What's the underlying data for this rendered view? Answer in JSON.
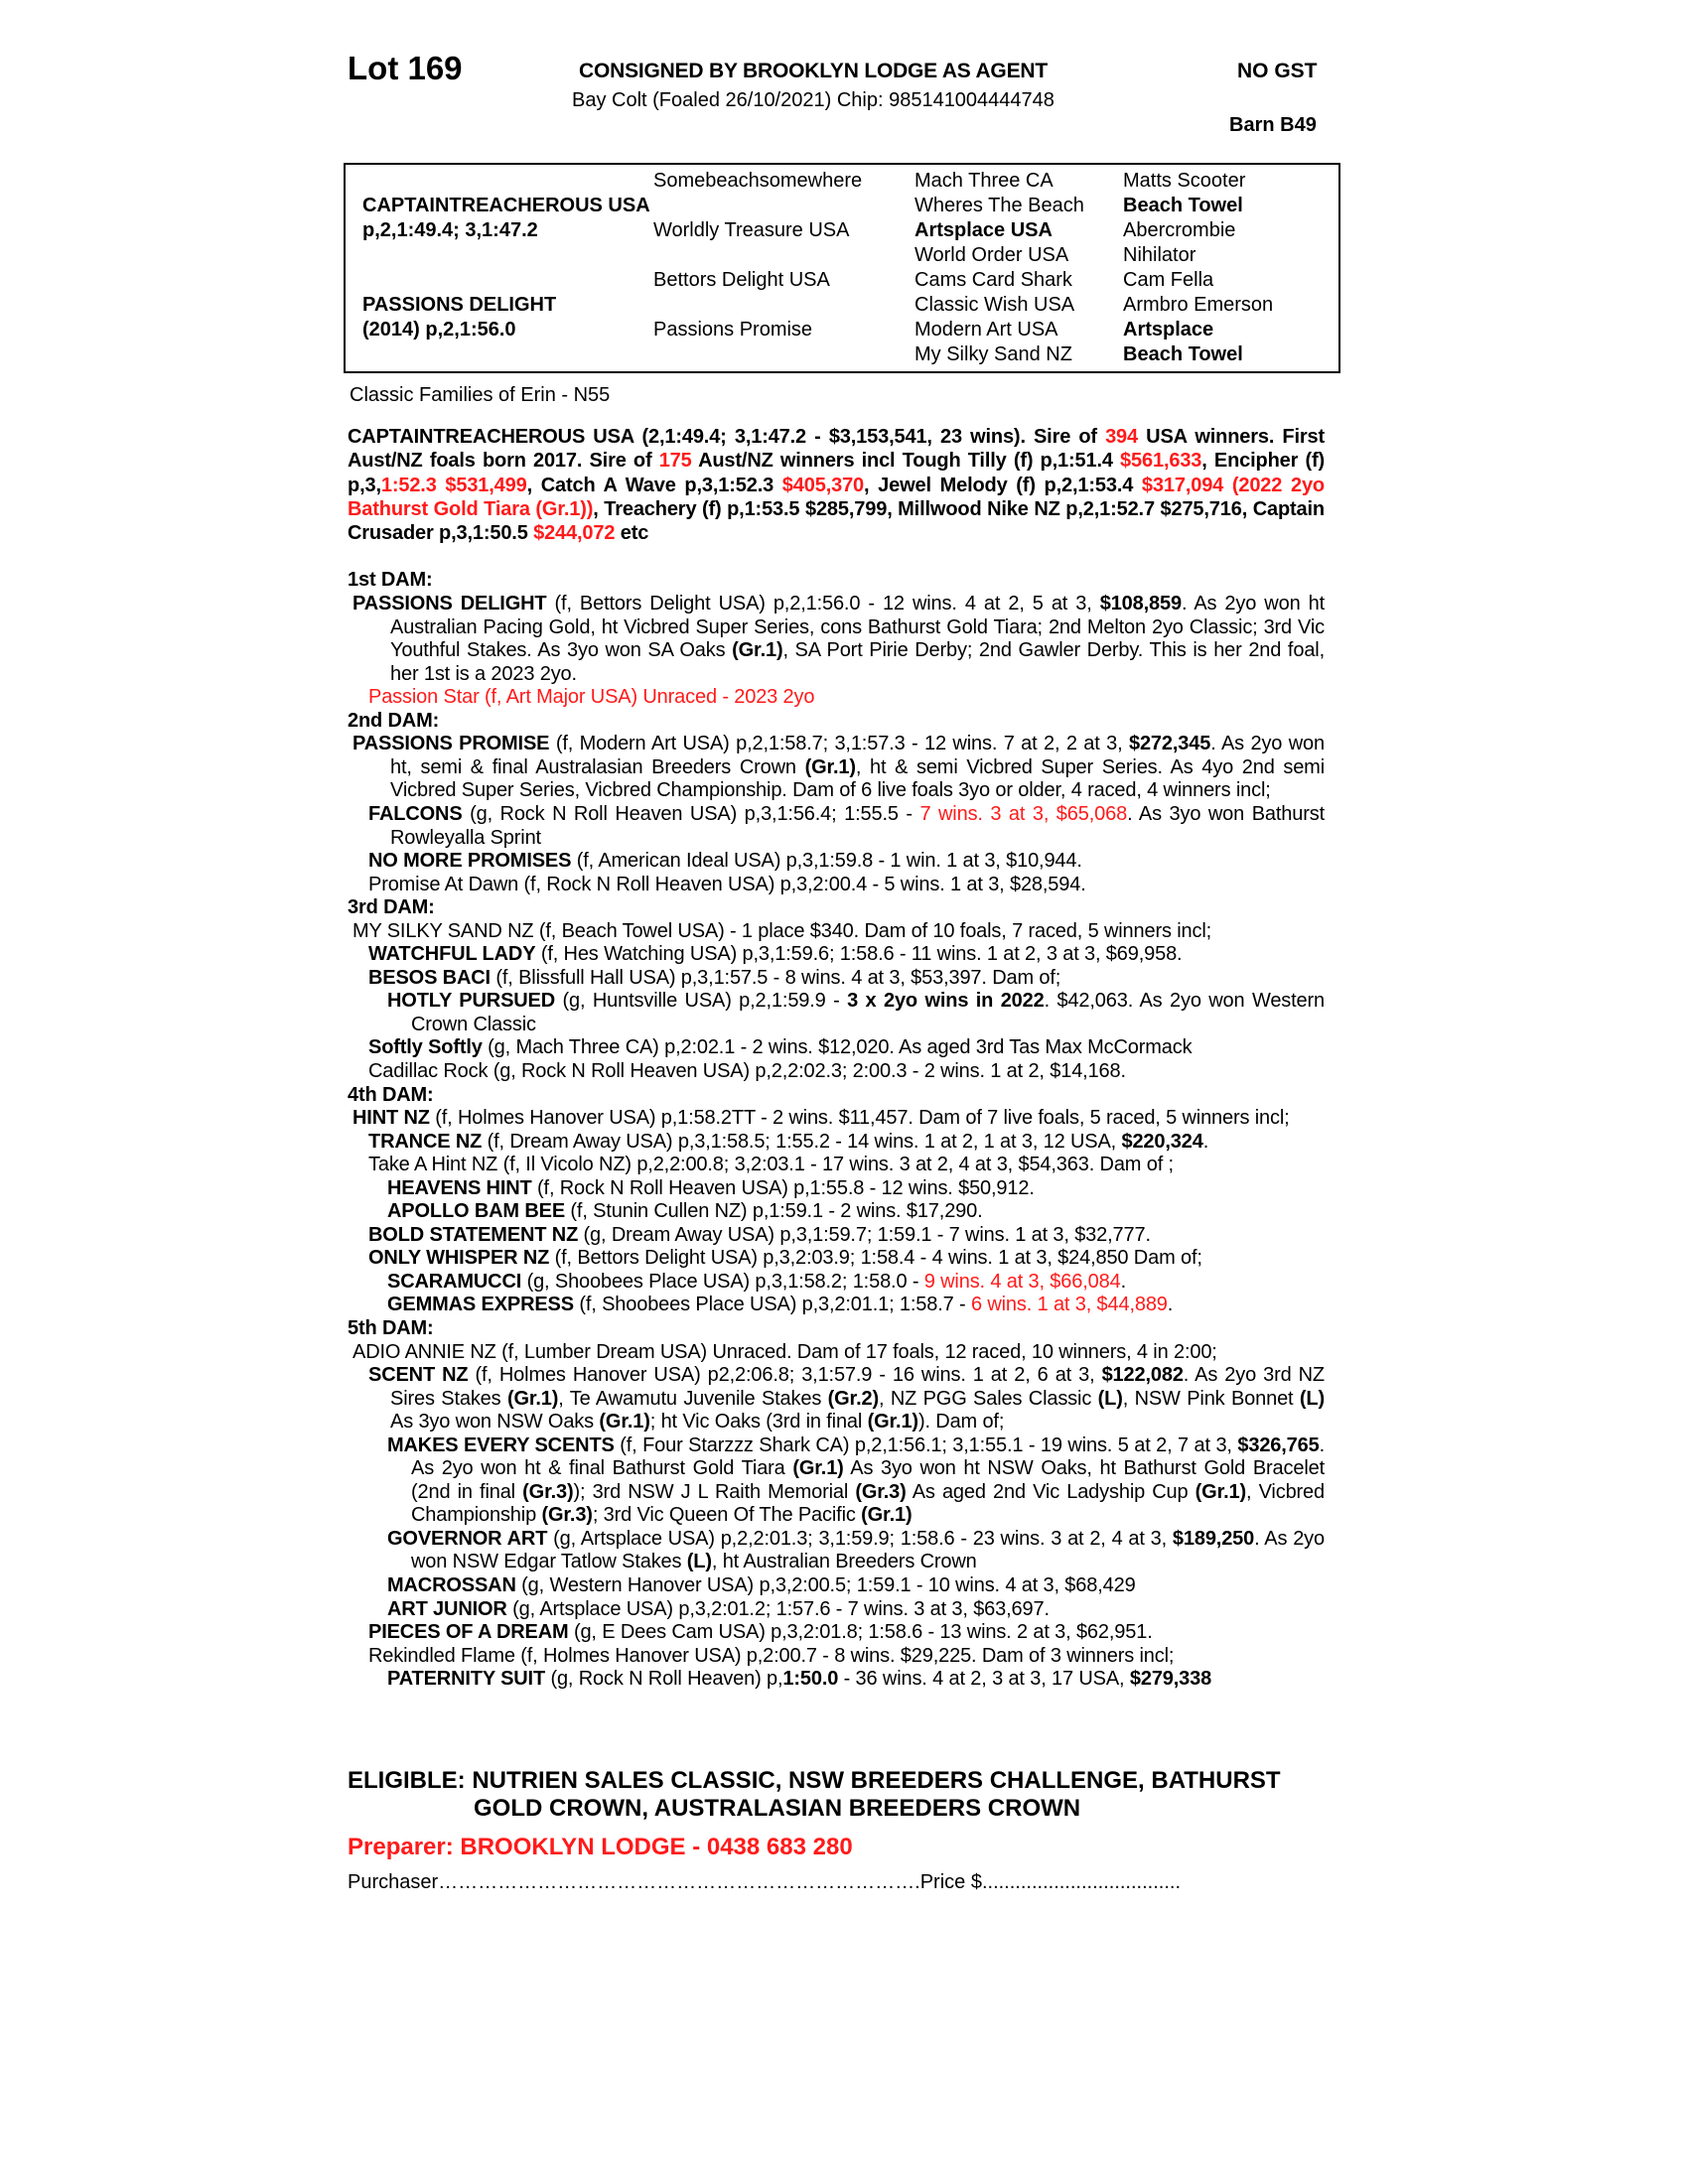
{
  "header": {
    "lot": "Lot 169",
    "consigned": "CONSIGNED BY BROOKLYN LODGE AS AGENT",
    "gst": "NO GST",
    "description": "Bay Colt (Foaled 26/10/2021) Chip: 985141004444748",
    "barn": "Barn B49"
  },
  "pedigree": {
    "sire": "CAPTAINTREACHEROUS USA",
    "sire_record": "p,2,1:49.4; 3,1:47.2",
    "dam": "PASSIONS DELIGHT",
    "dam_record": "(2014) p,2,1:56.0",
    "gen2": [
      "Somebeachsomewhere",
      "Worldly Treasure USA",
      "Bettors Delight USA",
      "Passions Promise"
    ],
    "gen3": [
      {
        "t": "Mach Three CA",
        "s": ""
      },
      {
        "t": "Wheres The Beach",
        "s": ""
      },
      {
        "t": "Artsplace USA",
        "s": "b"
      },
      {
        "t": "World Order USA",
        "s": ""
      },
      {
        "t": "Cams Card Shark",
        "s": ""
      },
      {
        "t": "Classic Wish USA",
        "s": ""
      },
      {
        "t": "Modern Art USA",
        "s": ""
      },
      {
        "t": "My Silky Sand NZ",
        "s": ""
      }
    ],
    "gen4": [
      {
        "t": "Matts Scooter",
        "s": ""
      },
      {
        "t": "Beach Towel",
        "s": "b"
      },
      {
        "t": "Abercrombie",
        "s": ""
      },
      {
        "t": "Nihilator",
        "s": ""
      },
      {
        "t": "Cam Fella",
        "s": ""
      },
      {
        "t": "Armbro Emerson",
        "s": ""
      },
      {
        "t": "Artsplace",
        "s": "b"
      },
      {
        "t": "Beach Towel",
        "s": "b"
      }
    ]
  },
  "family": "Classic Families of Erin - N55",
  "colors": {
    "highlight": "#ff1a1a",
    "text": "#000000"
  },
  "sire_paragraph": [
    {
      "t": "CAPTAINTREACHEROUS USA (2,1:49.4; 3,1:47.2 - $3,153,541, 23 wins). Sire of ",
      "s": "b"
    },
    {
      "t": "394",
      "s": "br"
    },
    {
      "t": " USA winners. First Aust/NZ foals born 2017. Sire of ",
      "s": "b"
    },
    {
      "t": "175",
      "s": "br"
    },
    {
      "t": " Aust/NZ winners incl Tough Tilly (f) p,1:51.4 ",
      "s": "b"
    },
    {
      "t": "$561,633",
      "s": "br"
    },
    {
      "t": ", Encipher (f) p,3,",
      "s": "b"
    },
    {
      "t": "1:52.3 $531,499",
      "s": "br"
    },
    {
      "t": ", Catch A Wave p,3,1:52.3 ",
      "s": "b"
    },
    {
      "t": "$405,370",
      "s": "br"
    },
    {
      "t": ", Jewel Melody (f) p,2,1:53.4 ",
      "s": "b"
    },
    {
      "t": "$317,094 (2022 2yo Bathurst Gold Tiara (Gr.1))",
      "s": "br"
    },
    {
      "t": ", Treachery (f) p,1:53.5 $285,799, Millwood Nike NZ p,2,1:52.7 $275,716, Captain Crusader p,3,1:50.5 ",
      "s": "b"
    },
    {
      "t": "$244,072",
      "s": "br"
    },
    {
      "t": " etc",
      "s": "b"
    }
  ],
  "lines": [
    {
      "lvl": "h",
      "seg": [
        {
          "t": "1st DAM:",
          "s": "b"
        }
      ]
    },
    {
      "lvl": "l0",
      "seg": [
        {
          "t": "PASSIONS DELIGHT",
          "s": "b"
        },
        {
          "t": " (f, Bettors Delight USA) p,2,1:56.0 - 12 wins. 4 at 2, 5 at 3, ",
          "s": ""
        },
        {
          "t": "$108,859",
          "s": "b"
        },
        {
          "t": ". As 2yo won ht Australian Pacing Gold, ht Vicbred Super Series, cons Bathurst Gold Tiara; 2nd Melton 2yo Classic; 3rd Vic Youthful Stakes. As 3yo won SA Oaks ",
          "s": ""
        },
        {
          "t": "(Gr.1)",
          "s": "b"
        },
        {
          "t": ", SA Port Pirie Derby; 2nd Gawler Derby. This is her 2nd foal, her 1st is a 2023 2yo.",
          "s": ""
        }
      ]
    },
    {
      "lvl": "l1",
      "seg": [
        {
          "t": "Passion Star (f, Art Major USA) Unraced - 2023 2yo",
          "s": "r"
        }
      ]
    },
    {
      "lvl": "h",
      "seg": [
        {
          "t": "2nd DAM:",
          "s": "b"
        }
      ]
    },
    {
      "lvl": "l0",
      "seg": [
        {
          "t": "PASSIONS PROMISE",
          "s": "b"
        },
        {
          "t": " (f, Modern Art USA) p,2,1:58.7; 3,1:57.3 - 12 wins. 7 at 2, 2 at 3, ",
          "s": ""
        },
        {
          "t": "$272,345",
          "s": "b"
        },
        {
          "t": ". As 2yo won ht, semi & final Australasian Breeders Crown ",
          "s": ""
        },
        {
          "t": "(Gr.1)",
          "s": "b"
        },
        {
          "t": ", ht & semi Vicbred Super Series. As 4yo 2nd semi Vicbred Super Series, Vicbred Championship. Dam of 6 live foals 3yo or older, 4 raced, 4 winners incl;",
          "s": ""
        }
      ]
    },
    {
      "lvl": "l1",
      "seg": [
        {
          "t": "FALCONS",
          "s": "b"
        },
        {
          "t": " (g, Rock N Roll Heaven USA) p,3,1:56.4; 1:55.5 - ",
          "s": ""
        },
        {
          "t": "7 wins. 3 at 3, $65,068",
          "s": "r"
        },
        {
          "t": ". As 3yo won Bathurst Rowleyalla Sprint",
          "s": ""
        }
      ]
    },
    {
      "lvl": "l1",
      "seg": [
        {
          "t": "NO MORE PROMISES",
          "s": "b"
        },
        {
          "t": " (f, American Ideal USA) p,3,1:59.8 - 1 win. 1 at 3, $10,944.",
          "s": ""
        }
      ]
    },
    {
      "lvl": "l1",
      "seg": [
        {
          "t": "Promise At Dawn (f, Rock N Roll Heaven USA) p,3,2:00.4 - 5 wins. 1 at 3, $28,594.",
          "s": ""
        }
      ]
    },
    {
      "lvl": "h",
      "seg": [
        {
          "t": "3rd DAM:",
          "s": "b"
        }
      ]
    },
    {
      "lvl": "l0",
      "seg": [
        {
          "t": "MY SILKY SAND NZ (f, Beach Towel USA) - 1 place $340. Dam of 10 foals, 7 raced, 5 winners incl;",
          "s": ""
        }
      ]
    },
    {
      "lvl": "l1",
      "seg": [
        {
          "t": "WATCHFUL LADY",
          "s": "b"
        },
        {
          "t": " (f, Hes Watching USA) p,3,1:59.6; 1:58.6 - 11 wins. 1 at 2, 3 at 3, $69,958.",
          "s": ""
        }
      ]
    },
    {
      "lvl": "l1",
      "seg": [
        {
          "t": "BESOS BACI",
          "s": "b"
        },
        {
          "t": " (f, Blissfull Hall USA) p,3,1:57.5 - 8 wins. 4 at 3, $53,397. Dam of;",
          "s": ""
        }
      ]
    },
    {
      "lvl": "l2",
      "seg": [
        {
          "t": "HOTLY PURSUED",
          "s": "b"
        },
        {
          "t": " (g, Huntsville USA) p,2,1:59.9 - ",
          "s": ""
        },
        {
          "t": "3 x 2yo wins in 2022",
          "s": "b"
        },
        {
          "t": ". $42,063. As 2yo won Western Crown Classic",
          "s": ""
        }
      ]
    },
    {
      "lvl": "l1",
      "seg": [
        {
          "t": "Softly Softly",
          "s": "b"
        },
        {
          "t": " (g, Mach Three CA) p,2:02.1 - 2 wins. $12,020. As aged 3rd Tas Max McCormack",
          "s": ""
        }
      ]
    },
    {
      "lvl": "l1",
      "seg": [
        {
          "t": "Cadillac Rock (g, Rock N Roll Heaven USA) p,2,2:02.3; 2:00.3 - 2 wins. 1 at 2, $14,168.",
          "s": ""
        }
      ]
    },
    {
      "lvl": "h",
      "seg": [
        {
          "t": "4th DAM:",
          "s": "b"
        }
      ]
    },
    {
      "lvl": "l0",
      "seg": [
        {
          "t": "HINT NZ",
          "s": "b"
        },
        {
          "t": " (f, Holmes Hanover USA) p,1:58.2TT - 2 wins. $11,457. Dam of 7 live foals, 5 raced, 5 winners incl;",
          "s": ""
        }
      ]
    },
    {
      "lvl": "l1",
      "seg": [
        {
          "t": "TRANCE NZ",
          "s": "b"
        },
        {
          "t": " (f, Dream Away USA) p,3,1:58.5; 1:55.2 - 14 wins. 1 at 2, 1 at 3, 12 USA, ",
          "s": ""
        },
        {
          "t": "$220,324",
          "s": "b"
        },
        {
          "t": ".",
          "s": ""
        }
      ]
    },
    {
      "lvl": "l1",
      "seg": [
        {
          "t": "Take A Hint NZ (f, Il Vicolo NZ) p,2,2:00.8; 3,2:03.1 - 17 wins. 3 at 2, 4 at 3, $54,363. Dam of ;",
          "s": ""
        }
      ]
    },
    {
      "lvl": "l2",
      "seg": [
        {
          "t": "HEAVENS HINT",
          "s": "b"
        },
        {
          "t": " (f, Rock N Roll Heaven USA) p,1:55.8 - 12 wins. $50,912.",
          "s": ""
        }
      ]
    },
    {
      "lvl": "l2",
      "seg": [
        {
          "t": "APOLLO BAM BEE",
          "s": "b"
        },
        {
          "t": " (f, Stunin Cullen NZ) p,1:59.1 - 2 wins. $17,290.",
          "s": ""
        }
      ]
    },
    {
      "lvl": "l1",
      "seg": [
        {
          "t": "BOLD STATEMENT NZ",
          "s": "b"
        },
        {
          "t": " (g, Dream Away USA) p,3,1:59.7; 1:59.1 - 7 wins. 1 at 3, $32,777.",
          "s": ""
        }
      ]
    },
    {
      "lvl": "l1",
      "seg": [
        {
          "t": "ONLY WHISPER NZ",
          "s": "b"
        },
        {
          "t": " (f, Bettors Delight USA) p,3,2:03.9; 1:58.4 - 4 wins. 1 at 3, $24,850 Dam of;",
          "s": ""
        }
      ]
    },
    {
      "lvl": "l2",
      "seg": [
        {
          "t": "SCARAMUCCI",
          "s": "b"
        },
        {
          "t": " (g, Shoobees Place USA) p,3,1:58.2; 1:58.0 - ",
          "s": ""
        },
        {
          "t": "9 wins. 4 at 3, $66,084",
          "s": "r"
        },
        {
          "t": ".",
          "s": ""
        }
      ]
    },
    {
      "lvl": "l2",
      "seg": [
        {
          "t": "GEMMAS EXPRESS",
          "s": "b"
        },
        {
          "t": " (f, Shoobees Place USA) p,3,2:01.1; 1:58.7 - ",
          "s": ""
        },
        {
          "t": "6 wins. 1 at 3, $44,889",
          "s": "r"
        },
        {
          "t": ".",
          "s": ""
        }
      ]
    },
    {
      "lvl": "h",
      "seg": [
        {
          "t": "5th DAM:",
          "s": "b"
        }
      ]
    },
    {
      "lvl": "l0",
      "seg": [
        {
          "t": "ADIO ANNIE NZ (f, Lumber Dream USA) Unraced. Dam of 17 foals, 12 raced, 10 winners, 4 in 2:00;",
          "s": ""
        }
      ]
    },
    {
      "lvl": "l1",
      "seg": [
        {
          "t": "SCENT NZ",
          "s": "b"
        },
        {
          "t": " (f, Holmes Hanover USA) p2,2:06.8; 3,1:57.9 - 16 wins. 1 at 2, 6 at 3, ",
          "s": ""
        },
        {
          "t": "$122,082",
          "s": "b"
        },
        {
          "t": ". As 2yo 3rd NZ Sires Stakes ",
          "s": ""
        },
        {
          "t": "(Gr.1)",
          "s": "b"
        },
        {
          "t": ", Te Awamutu Juvenile Stakes ",
          "s": ""
        },
        {
          "t": "(Gr.2)",
          "s": "b"
        },
        {
          "t": ", NZ PGG Sales Classic ",
          "s": ""
        },
        {
          "t": "(L)",
          "s": "b"
        },
        {
          "t": ", NSW Pink Bonnet ",
          "s": ""
        },
        {
          "t": "(L)",
          "s": "b"
        },
        {
          "t": " As 3yo won NSW Oaks ",
          "s": ""
        },
        {
          "t": "(Gr.1)",
          "s": "b"
        },
        {
          "t": "; ht Vic Oaks (3rd in final ",
          "s": ""
        },
        {
          "t": "(Gr.1)",
          "s": "b"
        },
        {
          "t": "). Dam of;",
          "s": ""
        }
      ]
    },
    {
      "lvl": "l2",
      "seg": [
        {
          "t": "MAKES EVERY SCENTS",
          "s": "b"
        },
        {
          "t": " (f, Four Starzzz Shark CA) p,2,1:56.1; 3,1:55.1 - 19 wins. 5 at 2, 7 at 3, ",
          "s": ""
        },
        {
          "t": "$326,765",
          "s": "b"
        },
        {
          "t": ". As 2yo won ht & final Bathurst Gold Tiara ",
          "s": ""
        },
        {
          "t": "(Gr.1)",
          "s": "b"
        },
        {
          "t": " As 3yo won ht NSW Oaks, ht Bathurst Gold Bracelet (2nd in final ",
          "s": ""
        },
        {
          "t": "(Gr.3)",
          "s": "b"
        },
        {
          "t": "); 3rd NSW J L Raith Memorial ",
          "s": ""
        },
        {
          "t": "(Gr.3)",
          "s": "b"
        },
        {
          "t": " As aged 2nd Vic Ladyship Cup ",
          "s": ""
        },
        {
          "t": "(Gr.1)",
          "s": "b"
        },
        {
          "t": ", Vicbred Championship ",
          "s": ""
        },
        {
          "t": "(Gr.3)",
          "s": "b"
        },
        {
          "t": "; 3rd Vic Queen Of The Pacific ",
          "s": ""
        },
        {
          "t": "(Gr.1)",
          "s": "b"
        }
      ]
    },
    {
      "lvl": "l2",
      "seg": [
        {
          "t": "GOVERNOR ART",
          "s": "b"
        },
        {
          "t": " (g, Artsplace USA) p,2,2:01.3; 3,1:59.9; 1:58.6 - 23 wins. 3 at 2, 4 at 3, ",
          "s": ""
        },
        {
          "t": "$189,250",
          "s": "b"
        },
        {
          "t": ". As 2yo won NSW Edgar Tatlow Stakes ",
          "s": ""
        },
        {
          "t": "(L)",
          "s": "b"
        },
        {
          "t": ", ht Australian Breeders Crown",
          "s": ""
        }
      ]
    },
    {
      "lvl": "l2",
      "seg": [
        {
          "t": "MACROSSAN",
          "s": "b"
        },
        {
          "t": " (g, Western Hanover USA) p,3,2:00.5; 1:59.1 - 10 wins. 4 at 3, $68,429",
          "s": ""
        }
      ]
    },
    {
      "lvl": "l2",
      "seg": [
        {
          "t": "ART JUNIOR",
          "s": "b"
        },
        {
          "t": " (g, Artsplace USA) p,3,2:01.2; 1:57.6 - 7 wins. 3 at 3, $63,697.",
          "s": ""
        }
      ]
    },
    {
      "lvl": "l1",
      "seg": [
        {
          "t": "PIECES OF A DREAM",
          "s": "b"
        },
        {
          "t": " (g, E Dees Cam USA) p,3,2:01.8; 1:58.6 - 13 wins. 2 at 3, $62,951.",
          "s": ""
        }
      ]
    },
    {
      "lvl": "l1",
      "seg": [
        {
          "t": "Rekindled Flame (f, Holmes Hanover USA) p,2:00.7 - 8 wins. $29,225. Dam of 3 winners incl;",
          "s": ""
        }
      ]
    },
    {
      "lvl": "l2",
      "seg": [
        {
          "t": "PATERNITY SUIT",
          "s": "b"
        },
        {
          "t": " (g, Rock N Roll Heaven) p,",
          "s": ""
        },
        {
          "t": "1:50.0",
          "s": "b"
        },
        {
          "t": " - 36 wins. 4 at 2, 3 at 3, 17 USA, ",
          "s": ""
        },
        {
          "t": "$279,338",
          "s": "b"
        }
      ]
    }
  ],
  "eligible": [
    "ELIGIBLE: NUTRIEN SALES CLASSIC, NSW BREEDERS CHALLENGE, BATHURST",
    "GOLD CROWN, AUSTRALASIAN BREEDERS CROWN"
  ],
  "preparer": "Preparer: BROOKLYN LODGE - 0438 683 280",
  "purchaser": "Purchaser……………………………………………………………….Price $...................................."
}
